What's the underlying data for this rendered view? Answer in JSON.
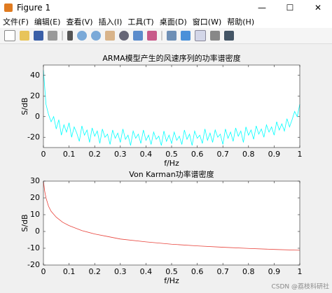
{
  "window": {
    "title": "Figure 1",
    "menu": [
      "文件(F)",
      "编辑(E)",
      "查看(V)",
      "插入(I)",
      "工具(T)",
      "桌面(D)",
      "窗口(W)",
      "帮助(H)"
    ],
    "watermark": "CSDN @荔枝科研社"
  },
  "chart_data": [
    {
      "type": "line",
      "title": "ARMA模型产生的风速序列的功率谱密度",
      "x_label": "f/Hz",
      "y_label": "S/dB",
      "xlim": [
        0,
        1
      ],
      "xticks": [
        0,
        0.1,
        0.2,
        0.3,
        0.4,
        0.5,
        0.6,
        0.7,
        0.8,
        0.9,
        1
      ],
      "ylim": [
        -30,
        50
      ],
      "yticks": [
        -20,
        0,
        20,
        40
      ],
      "series": [
        {
          "color": "#00ffff",
          "x": [
            0,
            0.01,
            0.02,
            0.03,
            0.04,
            0.05,
            0.06,
            0.07,
            0.08,
            0.09,
            0.1,
            0.11,
            0.12,
            0.13,
            0.14,
            0.15,
            0.16,
            0.17,
            0.18,
            0.19,
            0.2,
            0.21,
            0.22,
            0.23,
            0.24,
            0.25,
            0.26,
            0.27,
            0.28,
            0.29,
            0.3,
            0.31,
            0.32,
            0.33,
            0.34,
            0.35,
            0.36,
            0.37,
            0.38,
            0.39,
            0.4,
            0.41,
            0.42,
            0.43,
            0.44,
            0.45,
            0.46,
            0.47,
            0.48,
            0.49,
            0.5,
            0.51,
            0.52,
            0.53,
            0.54,
            0.55,
            0.56,
            0.57,
            0.58,
            0.59,
            0.6,
            0.61,
            0.62,
            0.63,
            0.64,
            0.65,
            0.66,
            0.67,
            0.68,
            0.69,
            0.7,
            0.71,
            0.72,
            0.73,
            0.74,
            0.75,
            0.76,
            0.77,
            0.78,
            0.79,
            0.8,
            0.81,
            0.82,
            0.83,
            0.84,
            0.85,
            0.86,
            0.87,
            0.88,
            0.89,
            0.9,
            0.91,
            0.92,
            0.93,
            0.94,
            0.95,
            0.96,
            0.97,
            0.98,
            0.99,
            1
          ],
          "values": [
            45,
            12,
            2,
            -5,
            0,
            -12,
            -3,
            -18,
            -8,
            -15,
            -6,
            -20,
            -10,
            -16,
            -24,
            -9,
            -18,
            -13,
            -25,
            -11,
            -19,
            -14,
            -26,
            -12,
            -20,
            -17,
            -27,
            -13,
            -21,
            -16,
            -25,
            -12,
            -22,
            -18,
            -28,
            -14,
            -21,
            -17,
            -26,
            -13,
            -23,
            -18,
            -27,
            -15,
            -22,
            -19,
            -28,
            -14,
            -24,
            -18,
            -26,
            -15,
            -23,
            -19,
            -27,
            -13,
            -22,
            -17,
            -28,
            -14,
            -21,
            -18,
            -26,
            -12,
            -23,
            -16,
            -25,
            -13,
            -20,
            -17,
            -27,
            -12,
            -21,
            -15,
            -24,
            -11,
            -19,
            -14,
            -25,
            -10,
            -18,
            -13,
            -22,
            -9,
            -17,
            -12,
            -20,
            -8,
            -15,
            -10,
            -18,
            -5,
            -13,
            -7,
            -14,
            -2,
            -10,
            -3,
            5,
            0,
            12
          ]
        }
      ]
    },
    {
      "type": "line",
      "title": "Von Karman功率谱密度",
      "x_label": "f/Hz",
      "y_label": "S/dB",
      "xlim": [
        0,
        1
      ],
      "xticks": [
        0,
        0.1,
        0.2,
        0.3,
        0.4,
        0.5,
        0.6,
        0.7,
        0.8,
        0.9,
        1
      ],
      "ylim": [
        -20,
        30
      ],
      "yticks": [
        -20,
        -10,
        0,
        10,
        20,
        30
      ],
      "series": [
        {
          "color": "#e8423a",
          "x": [
            0,
            0.005,
            0.01,
            0.02,
            0.03,
            0.05,
            0.075,
            0.1,
            0.15,
            0.2,
            0.25,
            0.3,
            0.4,
            0.5,
            0.6,
            0.7,
            0.8,
            0.9,
            1
          ],
          "values": [
            30,
            24,
            20,
            15,
            12,
            8.5,
            5.5,
            3.5,
            0.5,
            -1.5,
            -3,
            -4.5,
            -6.2,
            -7.6,
            -8.6,
            -9.4,
            -10.1,
            -10.7,
            -11.2
          ]
        }
      ]
    }
  ]
}
